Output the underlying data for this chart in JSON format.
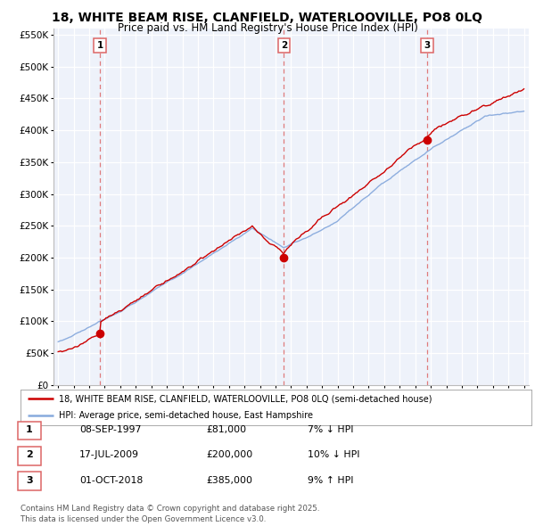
{
  "title": "18, WHITE BEAM RISE, CLANFIELD, WATERLOOVILLE, PO8 0LQ",
  "subtitle": "Price paid vs. HM Land Registry's House Price Index (HPI)",
  "legend_line1": "18, WHITE BEAM RISE, CLANFIELD, WATERLOOVILLE, PO8 0LQ (semi-detached house)",
  "legend_line2": "HPI: Average price, semi-detached house, East Hampshire",
  "footer": "Contains HM Land Registry data © Crown copyright and database right 2025.\nThis data is licensed under the Open Government Licence v3.0.",
  "transactions": [
    {
      "num": "1",
      "date": "08-SEP-1997",
      "price_str": "£81,000",
      "price": 81000,
      "pct": "7% ↓ HPI",
      "x": 1997.7
    },
    {
      "num": "2",
      "date": "17-JUL-2009",
      "price_str": "£200,000",
      "price": 200000,
      "pct": "10% ↓ HPI",
      "x": 2009.54
    },
    {
      "num": "3",
      "date": "01-OCT-2018",
      "price_str": "£385,000",
      "price": 385000,
      "pct": "9% ↑ HPI",
      "x": 2018.75
    }
  ],
  "price_color": "#cc0000",
  "hpi_color": "#88aadd",
  "vline_color": "#dd6666",
  "dot_color": "#cc0000",
  "ylim": [
    0,
    560000
  ],
  "yticks": [
    0,
    50000,
    100000,
    150000,
    200000,
    250000,
    300000,
    350000,
    400000,
    450000,
    500000,
    550000
  ],
  "xlim_start": 1994.7,
  "xlim_end": 2025.3,
  "background_color": "#ffffff",
  "plot_bg_color": "#eef2fa"
}
